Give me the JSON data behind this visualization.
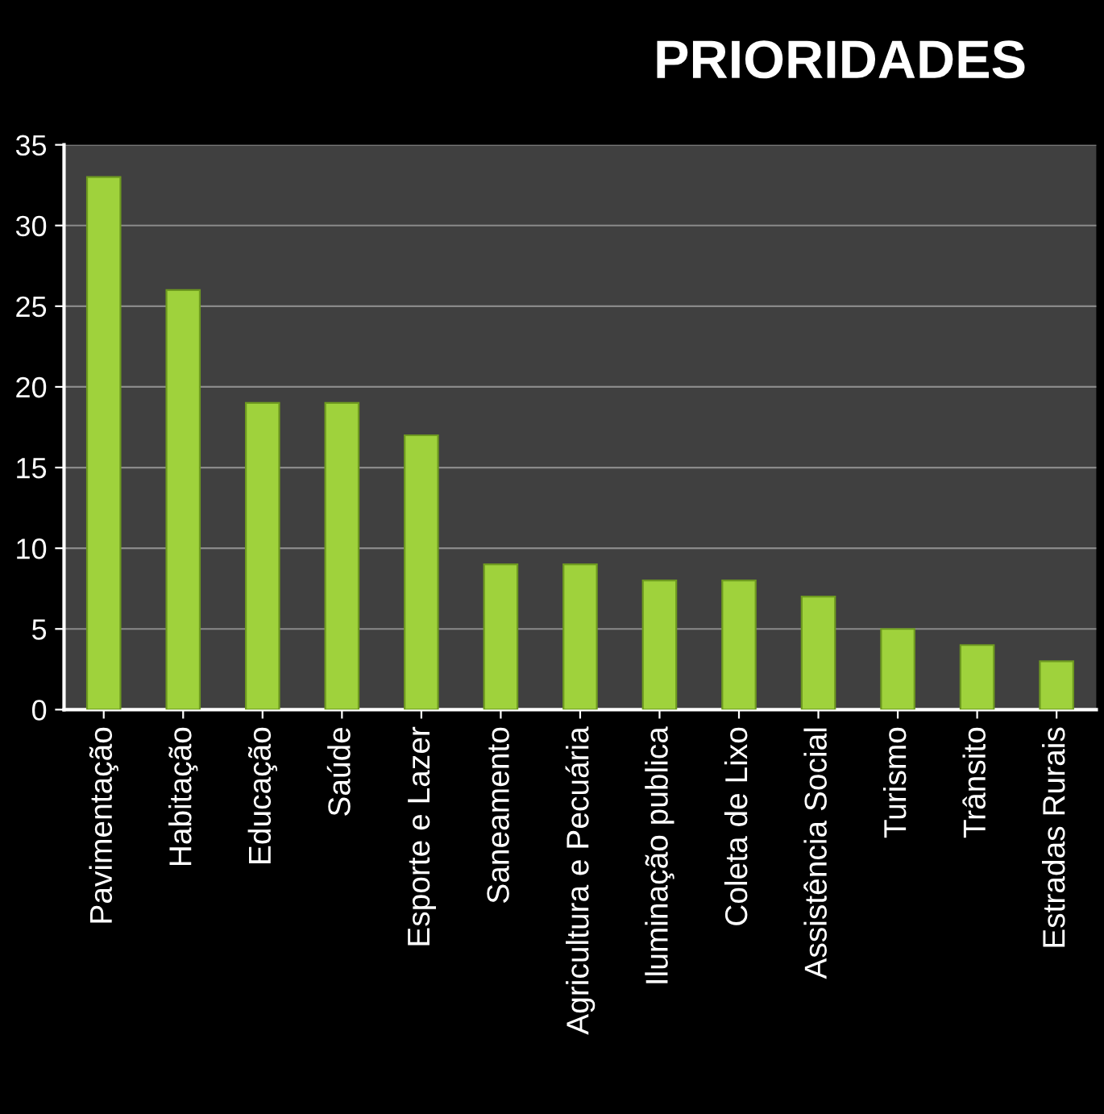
{
  "chart_data": {
    "type": "bar",
    "title": "PRIORIDADES",
    "categories": [
      "Pavimentação",
      "Habitação",
      "Educação",
      "Saúde",
      "Esporte e Lazer",
      "Saneamento",
      "Agricultura e Pecuária",
      "Iluminação publica",
      "Coleta de Lixo",
      "Assistência Social",
      "Turismo",
      "Trânsito",
      "Estradas Rurais"
    ],
    "values": [
      33,
      26,
      19,
      19,
      17,
      9,
      9,
      8,
      8,
      7,
      5,
      4,
      3
    ],
    "color": "#9fd23c",
    "ylim": [
      0,
      35
    ],
    "yticks": [
      0,
      5,
      10,
      15,
      20,
      25,
      30,
      35
    ],
    "grid": "y",
    "legend": false
  }
}
